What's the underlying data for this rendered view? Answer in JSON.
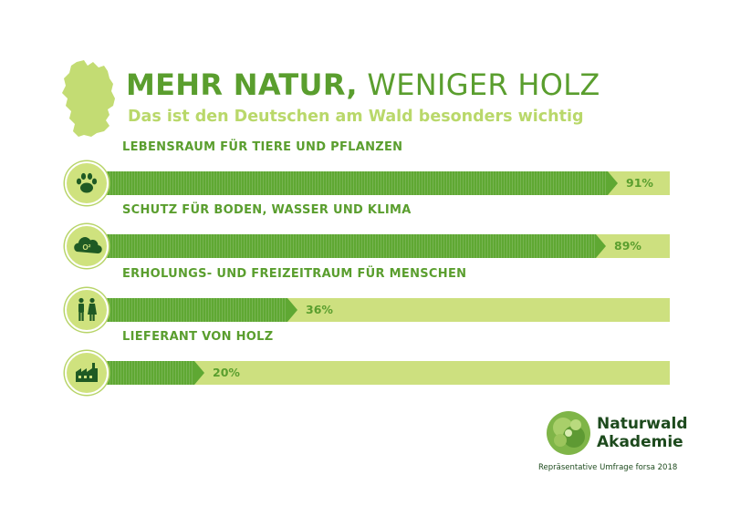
{
  "header": {
    "title_bold": "MEHR NATUR,",
    "title_light": " WENIGER HOLZ",
    "subtitle": "Das ist den Deutschen am Wald besonders wichtig"
  },
  "chart_data": {
    "type": "bar",
    "orientation": "horizontal",
    "title": "MEHR NATUR, WENIGER HOLZ",
    "subtitle": "Das ist den Deutschen am Wald besonders wichtig",
    "xlim": [
      0,
      100
    ],
    "unit": "%",
    "categories": [
      "LEBENSRAUM FÜR TIERE UND PFLANZEN",
      "SCHUTZ FÜR BODEN, WASSER UND KLIMA",
      "ERHOLUNGS- UND FREIZEITRAUM FÜR MENSCHEN",
      "LIEFERANT VON HOLZ"
    ],
    "values": [
      91,
      89,
      36,
      20
    ],
    "value_labels": [
      "91%",
      "89%",
      "36%",
      "20%"
    ],
    "icons": [
      "paw-icon",
      "cloud-o2-icon",
      "people-icon",
      "factory-icon"
    ],
    "colors": {
      "fill": "#5fa833",
      "track": "#cde07f",
      "text": "#5a9e2e",
      "subtitle": "#b9d86a"
    },
    "grid": false,
    "legend": "none"
  },
  "logo": {
    "line1": "Naturwald",
    "line2": "Akademie"
  },
  "source": "Repräsentative Umfrage forsa 2018"
}
